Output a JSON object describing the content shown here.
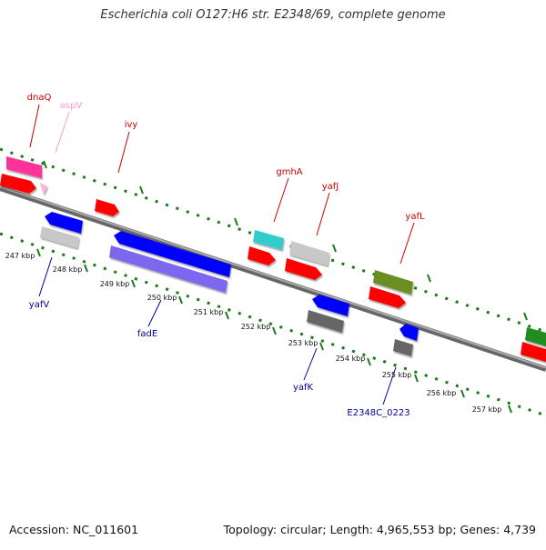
{
  "title": "Escherichia coli O127:H6 str. E2348/69, complete genome",
  "footer": {
    "accession": "Accession: NC_011601",
    "stats": "Topology: circular; Length: 4,965,553 bp; Genes: 4,739"
  },
  "axis_ticks": [
    "247 kbp",
    "248 kbp",
    "249 kbp",
    "250 kbp",
    "251 kbp",
    "252 kbp",
    "253 kbp",
    "254 kbp",
    "255 kbp",
    "256 kbp",
    "257 kbp"
  ],
  "genes": {
    "forward": [
      {
        "label": "dnaQ",
        "color": "#ff3399"
      },
      {
        "label": "aspV",
        "color": "#ff99cc"
      },
      {
        "label": "ivy",
        "color": "#ff0000"
      },
      {
        "label": "gmhA",
        "color": "#33cccc"
      },
      {
        "label": "yafJ",
        "color": "#c8c8c8"
      },
      {
        "label": "yafL",
        "color": "#6b8e23"
      }
    ],
    "reverse": [
      {
        "label": "yafV",
        "color": "#0000ff"
      },
      {
        "label": "fadE",
        "color": "#7b68ee"
      },
      {
        "label": "yafK",
        "color": "#0000ff"
      },
      {
        "label": "E2348C_0223",
        "color": "#555555"
      }
    ]
  },
  "colors": {
    "forward_label": "#cc0000",
    "reverse_label": "#000099",
    "backbone": "#888888",
    "dots": "#1a7a1a"
  }
}
